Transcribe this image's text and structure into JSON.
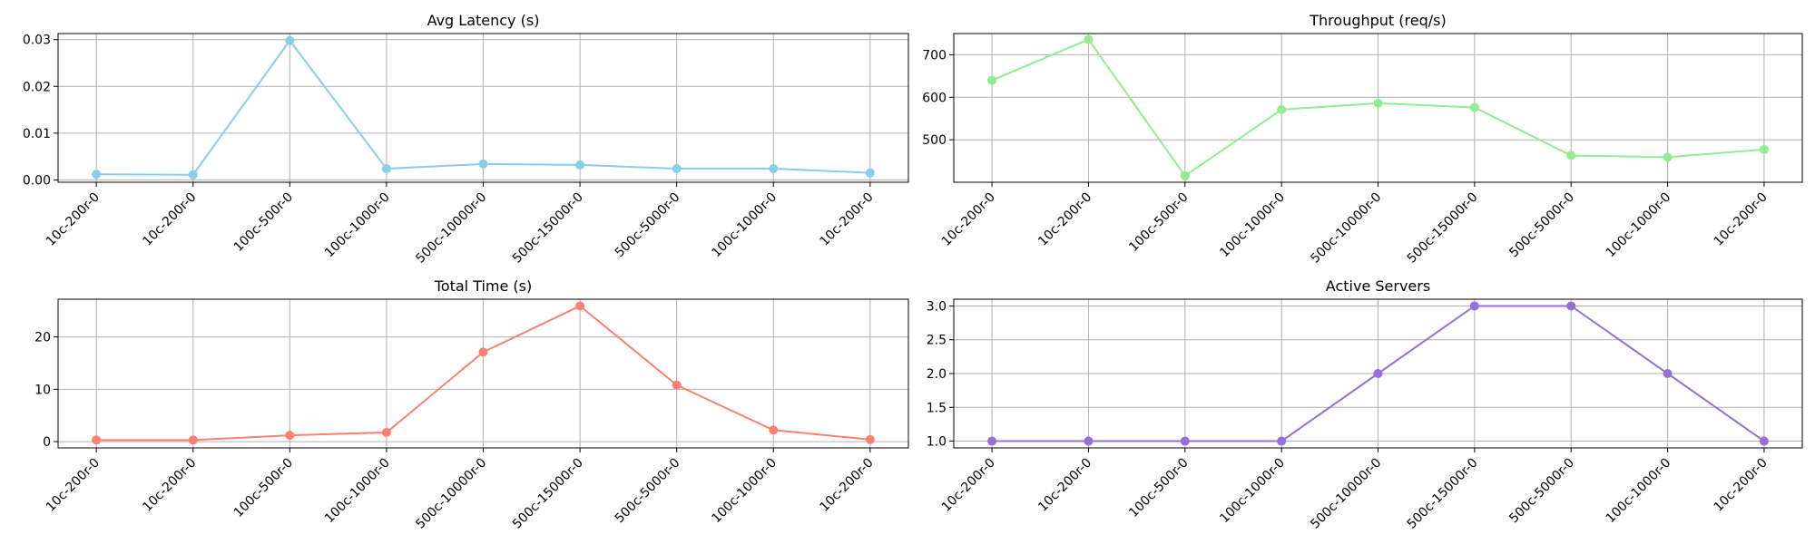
{
  "chart_data": [
    {
      "type": "line",
      "title": "Avg Latency (s)",
      "xlabel": "",
      "ylabel": "",
      "categories": [
        "10c-200r-0",
        "10c-200r-0",
        "100c-500r-0",
        "100c-1000r-0",
        "500c-10000r-0",
        "500c-15000r-0",
        "500c-5000r-0",
        "100c-1000r-0",
        "10c-200r-0"
      ],
      "values": [
        0.0012,
        0.0011,
        0.0298,
        0.0024,
        0.0034,
        0.0032,
        0.0024,
        0.0024,
        0.0015
      ],
      "ylim": [
        -0.0005,
        0.0313
      ],
      "yticks": [
        0.0,
        0.01,
        0.02,
        0.03
      ],
      "ytick_labels": [
        "0.00",
        "0.01",
        "0.02",
        "0.03"
      ],
      "color": "#87ceeb",
      "grid": true
    },
    {
      "type": "line",
      "title": "Throughput (req/s)",
      "xlabel": "",
      "ylabel": "",
      "categories": [
        "10c-200r-0",
        "10c-200r-0",
        "100c-500r-0",
        "100c-1000r-0",
        "500c-10000r-0",
        "500c-15000r-0",
        "500c-5000r-0",
        "100c-1000r-0",
        "10c-200r-0"
      ],
      "values": [
        640,
        736,
        415,
        571,
        586,
        576,
        463,
        459,
        477
      ],
      "ylim": [
        400,
        750
      ],
      "yticks": [
        500,
        600,
        700
      ],
      "ytick_labels": [
        "500",
        "600",
        "700"
      ],
      "color": "#90ee90",
      "grid": true
    },
    {
      "type": "line",
      "title": "Total Time (s)",
      "xlabel": "",
      "ylabel": "",
      "categories": [
        "10c-200r-0",
        "10c-200r-0",
        "100c-500r-0",
        "100c-1000r-0",
        "500c-10000r-0",
        "500c-15000r-0",
        "500c-5000r-0",
        "100c-1000r-0",
        "10c-200r-0"
      ],
      "values": [
        0.3,
        0.3,
        1.2,
        1.75,
        17.1,
        25.9,
        10.8,
        2.2,
        0.4
      ],
      "ylim": [
        -1.2,
        27.2
      ],
      "yticks": [
        0,
        10,
        20
      ],
      "ytick_labels": [
        "0",
        "10",
        "20"
      ],
      "color": "#fa8072",
      "grid": true
    },
    {
      "type": "line",
      "title": "Active Servers",
      "xlabel": "",
      "ylabel": "",
      "categories": [
        "10c-200r-0",
        "10c-200r-0",
        "100c-500r-0",
        "100c-1000r-0",
        "500c-10000r-0",
        "500c-15000r-0",
        "500c-5000r-0",
        "100c-1000r-0",
        "10c-200r-0"
      ],
      "values": [
        1,
        1,
        1,
        1,
        2,
        3,
        3,
        2,
        1
      ],
      "ylim": [
        0.9,
        3.1
      ],
      "yticks": [
        1.0,
        1.5,
        2.0,
        2.5,
        3.0
      ],
      "ytick_labels": [
        "1.0",
        "1.5",
        "2.0",
        "2.5",
        "3.0"
      ],
      "color": "#9370db",
      "grid": true
    }
  ]
}
